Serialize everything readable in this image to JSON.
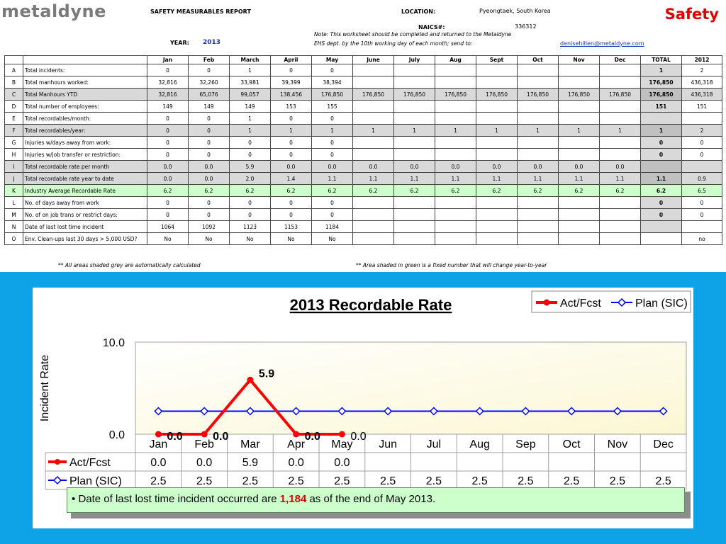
{
  "header": {
    "logo": "metaldyne",
    "safety": "Safety",
    "report_title": "SAFETY MEASURABLES REPORT",
    "location_label": "LOCATION:",
    "location_value": "Pyeongtaek, South Korea",
    "naics_label": "NAICS#:",
    "naics_value": "336312",
    "year_label": "YEAR:",
    "year_value": "2013",
    "note_line1": "Note:  This worksheet should be completed and returned to the Metaldyne",
    "note_line2": "EHS dept. by the 10th working day of each month; send to:",
    "email": "denisehillen@metaldyne.com"
  },
  "table": {
    "columns": [
      "Jan",
      "Feb",
      "March",
      "April",
      "May",
      "June",
      "July",
      "Aug",
      "Sept",
      "Oct",
      "Nov",
      "Dec",
      "TOTAL",
      "2012"
    ],
    "rows": [
      {
        "code": "A",
        "label": "Total incidents:",
        "style": "",
        "values": [
          "0",
          "0",
          "1",
          "0",
          "0",
          "",
          "",
          "",
          "",
          "",
          "",
          "",
          "1",
          "2"
        ],
        "total_style": "tot"
      },
      {
        "code": "B",
        "label": "Total manhours worked:",
        "style": "",
        "values": [
          "32,816",
          "32,260",
          "33,981",
          "39,399",
          "38,394",
          "",
          "",
          "",
          "",
          "",
          "",
          "",
          "176,850",
          "436,318"
        ],
        "total_style": "tot"
      },
      {
        "code": "C",
        "label": "Total Manhours YTD",
        "style": "grey",
        "values": [
          "32,816",
          "65,076",
          "99,057",
          "138,456",
          "176,850",
          "176,850",
          "176,850",
          "176,850",
          "176,850",
          "176,850",
          "176,850",
          "176,850",
          "176,850",
          "436,318"
        ],
        "total_style": "tot"
      },
      {
        "code": "D",
        "label": "Total number of employees:",
        "style": "",
        "values": [
          "149",
          "149",
          "149",
          "153",
          "155",
          "",
          "",
          "",
          "",
          "",
          "",
          "",
          "151",
          "151"
        ],
        "total_style": "tot"
      },
      {
        "code": "E",
        "label": "Total recordables/month:",
        "style": "",
        "values": [
          "0",
          "0",
          "1",
          "0",
          "0",
          "",
          "",
          "",
          "",
          "",
          "",
          "",
          "",
          ""
        ],
        "total_style": "tot"
      },
      {
        "code": "F",
        "label": "Total recordables/year:",
        "style": "grey",
        "values": [
          "0",
          "0",
          "1",
          "1",
          "1",
          "1",
          "1",
          "1",
          "1",
          "1",
          "1",
          "1",
          "1",
          "2"
        ],
        "total_style": "tot"
      },
      {
        "code": "G",
        "label": "Injuries w/days away from work:",
        "style": "",
        "values": [
          "0",
          "0",
          "0",
          "0",
          "0",
          "",
          "",
          "",
          "",
          "",
          "",
          "",
          "0",
          "0"
        ],
        "total_style": "tot"
      },
      {
        "code": "H",
        "label": "Injuries w/job transfer or restriction:",
        "style": "",
        "values": [
          "0",
          "0",
          "0",
          "0",
          "0",
          "",
          "",
          "",
          "",
          "",
          "",
          "",
          "0",
          "0"
        ],
        "total_style": "tot"
      },
      {
        "code": "I",
        "label": "Total recordable rate per month",
        "style": "grey",
        "values": [
          "0.0",
          "0.0",
          "5.9",
          "0.0",
          "0.0",
          "0.0",
          "0.0",
          "0.0",
          "0.0",
          "0.0",
          "0.0",
          "0.0",
          "",
          ""
        ],
        "total_style": "tot white"
      },
      {
        "code": "J",
        "label": "Total recordable rate year to date",
        "style": "grey",
        "values": [
          "0.0",
          "0.0",
          "2.0",
          "1.4",
          "1.1",
          "1.1",
          "1.1",
          "1.1",
          "1.1",
          "1.1",
          "1.1",
          "1.1",
          "1.1",
          "0.9"
        ],
        "total_style": "tot"
      },
      {
        "code": "K",
        "label": "Industry Average Recordable Rate",
        "style": "green",
        "values": [
          "6.2",
          "6.2",
          "6.2",
          "6.2",
          "6.2",
          "6.2",
          "6.2",
          "6.2",
          "6.2",
          "6.2",
          "6.2",
          "6.2",
          "6.2",
          "6.5"
        ],
        "total_style": "tot"
      },
      {
        "code": "L",
        "label": "No. of days away from work",
        "style": "",
        "values": [
          "0",
          "0",
          "0",
          "0",
          "0",
          "",
          "",
          "",
          "",
          "",
          "",
          "",
          "0",
          "0"
        ],
        "total_style": "tot"
      },
      {
        "code": "M",
        "label": "No. of on job trans or restrict days:",
        "style": "",
        "values": [
          "0",
          "0",
          "0",
          "0",
          "0",
          "",
          "",
          "",
          "",
          "",
          "",
          "",
          "0",
          "0"
        ],
        "total_style": "tot"
      },
      {
        "code": "N",
        "label": "Date of last lost time incident",
        "style": "",
        "values": [
          "1064",
          "1092",
          "1123",
          "1153",
          "1184",
          "",
          "",
          "",
          "",
          "",
          "",
          "",
          "",
          ""
        ],
        "total_style": "tot"
      },
      {
        "code": "O",
        "label": "Env. Clean-ups last 30 days > 5,000 USD?",
        "style": "",
        "values": [
          "No",
          "No",
          "No",
          "No",
          "No",
          "",
          "",
          "",
          "",
          "",
          "",
          "",
          "",
          "no"
        ],
        "total_style": "tot white"
      }
    ]
  },
  "footnotes": {
    "left": "**  All areas shaded grey are automatically calculated",
    "right": "**  Area shaded in green is a fixed number that will change year-to-year"
  },
  "chart_data": {
    "type": "line",
    "title": "2013 Recordable Rate",
    "ylabel": "Incident Rate",
    "xlabel": "",
    "categories": [
      "Jan",
      "Feb",
      "Mar",
      "Apr",
      "May",
      "Jun",
      "Jul",
      "Aug",
      "Sep",
      "Oct",
      "Nov",
      "Dec"
    ],
    "ylim": [
      0,
      10
    ],
    "yticks": [
      "0.0",
      "10.0"
    ],
    "legend_position": "top-right",
    "grid": false,
    "series": [
      {
        "name": "Act/Fcst",
        "color": "#ff0000",
        "values": [
          0.0,
          0.0,
          5.9,
          0.0,
          0.0,
          null,
          null,
          null,
          null,
          null,
          null,
          null
        ],
        "labels": [
          "0.0",
          "0.0",
          "5.9",
          "0.0",
          "0.0",
          "",
          "",
          "",
          "",
          "",
          "",
          ""
        ]
      },
      {
        "name": "Plan (SIC)",
        "color": "#0000ff",
        "values": [
          2.5,
          2.5,
          2.5,
          2.5,
          2.5,
          2.5,
          2.5,
          2.5,
          2.5,
          2.5,
          2.5,
          2.5
        ],
        "labels": [
          "2.5",
          "2.5",
          "2.5",
          "2.5",
          "2.5",
          "2.5",
          "2.5",
          "2.5",
          "2.5",
          "2.5",
          "2.5",
          "2.5"
        ]
      }
    ]
  },
  "callout": {
    "bullet": "•",
    "prefix": "Date of last lost time incident occurred are",
    "highlight": "1,184",
    "suffix": "as of the end of  May  2013."
  }
}
